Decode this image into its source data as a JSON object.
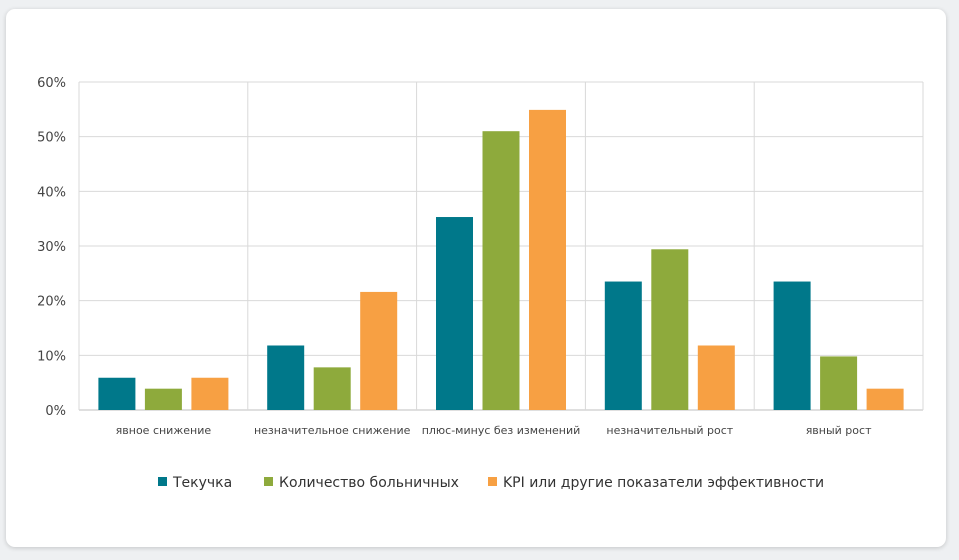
{
  "chart_data": {
    "type": "bar",
    "categories": [
      "явное снижение",
      "незначительное снижение",
      "плюс-минус без изменений",
      "незначительный рост",
      "явный рост"
    ],
    "series": [
      {
        "name": "Текучка",
        "color": "#00788a",
        "values": [
          5.9,
          11.8,
          35.3,
          23.5,
          23.5
        ]
      },
      {
        "name": "Количество больничных",
        "color": "#8eaa3c",
        "values": [
          3.9,
          7.8,
          51.0,
          29.4,
          9.8
        ]
      },
      {
        "name": "KPI или другие показатели эффективности",
        "color": "#f7a043",
        "values": [
          5.9,
          21.6,
          54.9,
          11.8,
          3.9
        ]
      }
    ],
    "yticks": [
      "0%",
      "10%",
      "20%",
      "30%",
      "40%",
      "50%",
      "60%"
    ],
    "ylim": [
      0,
      60
    ],
    "grid": true,
    "legend": "bottom"
  }
}
